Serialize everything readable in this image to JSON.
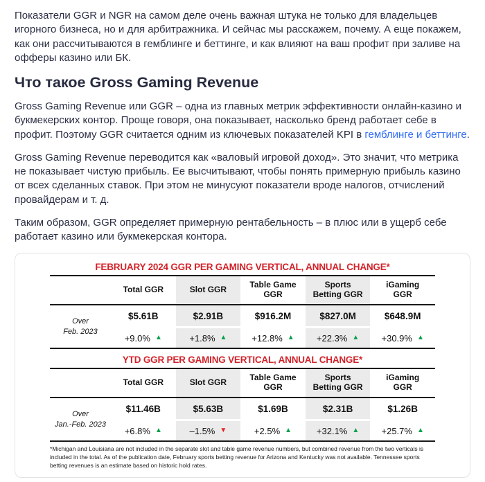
{
  "article": {
    "intro": "Показатели GGR и NGR на самом деле очень важная штука не только для владельцев игорного бизнеса, но и для арбитражника. И сейчас мы расскажем, почему. А еще покажем, как они рассчитываются в гемблинге и беттинге, и как влияют на ваш профит при заливе на офферы казино или БК.",
    "heading": "Что такое Gross Gaming Revenue",
    "p1_before": "Gross Gaming Revenue или GGR – одна из главных метрик эффективности онлайн-казино и букмекерских контор. Проще говоря, она показывает, насколько бренд работает себе в профит. Поэтому GGR считается одним из ключевых показателей KPI в ",
    "p1_link": "гемблинге и беттинге",
    "p1_after": ".",
    "p2": "Gross Gaming Revenue переводится как «валовый игровой доход». Это значит, что метрика не показывает чистую прибыль. Ее высчитывают, чтобы понять примерную прибыль казино от всех сделанных ставок. При этом не минусуют показатели вроде налогов, отчислений провайдерам и т. д.",
    "p3": "Таким образом, GGR определяет примерную рентабельность – в плюс или в ущерб себе работает казино или букмекерская контора."
  },
  "chart_data": [
    {
      "type": "table",
      "title": "FEBRUARY 2024 GGR PER GAMING VERTICAL, ANNUAL CHANGE*",
      "columns": [
        "Total GGR",
        "Slot GGR",
        "Table Game GGR",
        "Sports Betting GGR",
        "iGaming GGR"
      ],
      "row_label": [
        "Over",
        "Feb. 2023"
      ],
      "values": [
        "$5.61B",
        "$2.91B",
        "$916.2M",
        "$827.0M",
        "$648.9M"
      ],
      "changes": [
        {
          "value": "+9.0%",
          "dir": "up",
          "arrow": "▲"
        },
        {
          "value": "+1.8%",
          "dir": "up",
          "arrow": "▲"
        },
        {
          "value": "+12.8%",
          "dir": "up",
          "arrow": "▲"
        },
        {
          "value": "+22.3%",
          "dir": "up",
          "arrow": "▲"
        },
        {
          "value": "+30.9%",
          "dir": "up",
          "arrow": "▲"
        }
      ]
    },
    {
      "type": "table",
      "title": "YTD GGR PER GAMING VERTICAL, ANNUAL CHANGE*",
      "columns": [
        "Total GGR",
        "Slot GGR",
        "Table Game GGR",
        "Sports Betting GGR",
        "iGaming GGR"
      ],
      "row_label": [
        "Over",
        "Jan.-Feb. 2023"
      ],
      "values": [
        "$11.46B",
        "$5.63B",
        "$1.69B",
        "$2.31B",
        "$1.26B"
      ],
      "changes": [
        {
          "value": "+6.8%",
          "dir": "up",
          "arrow": "▲"
        },
        {
          "value": "–1.5%",
          "dir": "down",
          "arrow": "▼"
        },
        {
          "value": "+2.5%",
          "dir": "up",
          "arrow": "▲"
        },
        {
          "value": "+32.1%",
          "dir": "up",
          "arrow": "▲"
        },
        {
          "value": "+25.7%",
          "dir": "up",
          "arrow": "▲"
        }
      ]
    }
  ],
  "footnote": "*Michigan and Louisiana are not included in the separate slot and table game revenue numbers, but combined revenue from the two verticals is included in the total. As of the publication date, February sports betting revenue for Arizona and Kentucky was not available. Tennessee sports betting revenues is an estimate based on historic hold rates.",
  "colors": {
    "text": "#2b2f45",
    "link_blue": "#2e6bf6",
    "table_title_red": "#d2232a",
    "trend_up_green": "#00a14b",
    "trend_down_red": "#ec1c24",
    "column_shade_gray": "#ebebeb"
  }
}
